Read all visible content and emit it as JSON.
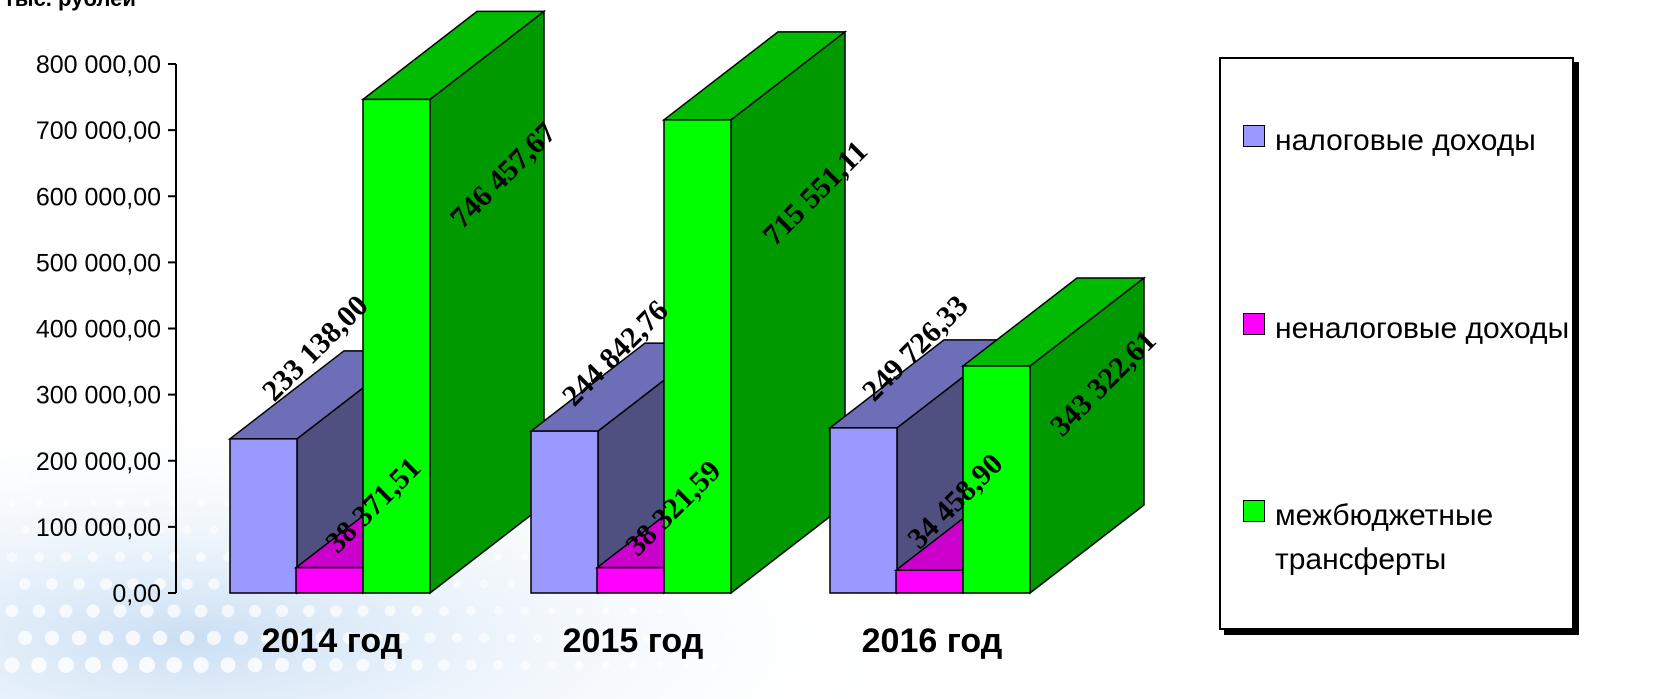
{
  "chart_data": {
    "type": "bar",
    "ylabel": "тыс. рублей",
    "categories": [
      "2014 год",
      "2015 год",
      "2016 год"
    ],
    "series": [
      {
        "name": "налоговые доходы",
        "values": [
          233138.0,
          244842.76,
          249726.33
        ],
        "labels": [
          "233 138,00",
          "244 842,76",
          "249 726,33"
        ],
        "color": "#9999ff"
      },
      {
        "name": "неналоговые доходы",
        "values": [
          38371.51,
          38321.59,
          34458.9
        ],
        "labels": [
          "38 371,51",
          "38 321,59",
          "34 458,90"
        ],
        "color": "#ff00ff"
      },
      {
        "name": "межбюджетные трансферты",
        "values": [
          746457.67,
          715551.11,
          343322.61
        ],
        "labels": [
          "746 457,67",
          "715 551,11",
          "343 322,61"
        ],
        "color": "#00ff00"
      }
    ],
    "yticks": [
      "0,00",
      "100 000,00",
      "200 000,00",
      "300 000,00",
      "400 000,00",
      "500 000,00",
      "600 000,00",
      "700 000,00",
      "800 000,00"
    ],
    "ylim": [
      0,
      800000
    ],
    "legend_position": "right",
    "grid": false
  }
}
